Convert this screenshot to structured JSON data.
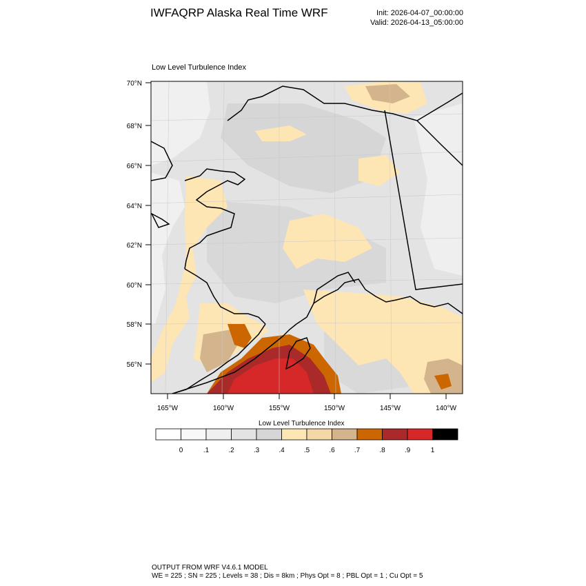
{
  "header": {
    "title": "IWFAQRP Alaska Real Time WRF",
    "init": "Init: 2026-04-07_00:00:00",
    "valid": "Valid: 2026-04-13_05:00:00"
  },
  "map": {
    "title": "Low Level Turbulence Index",
    "lat_labels": [
      "70°N",
      "68°N",
      "66°N",
      "64°N",
      "62°N",
      "60°N",
      "58°N",
      "56°N"
    ],
    "lon_labels": [
      "165°W",
      "160°W",
      "155°W",
      "150°W",
      "145°W",
      "140°W"
    ],
    "colors": {
      "background": "#e6e6e6",
      "land_light": "#f0f0f0",
      "mid_gray": "#d8d8d8",
      "pale_orange": "#fde5b4",
      "tan": "#d4b48c",
      "orange": "#cc6600",
      "dark_red": "#aa2a2a",
      "red": "#d62828",
      "coast": "#000000"
    }
  },
  "colorbar": {
    "title": "Low Level Turbulence Index",
    "colors": [
      "#ffffff",
      "#f8f8f8",
      "#f0f0f0",
      "#e3e3e3",
      "#d6d6d6",
      "#fde5b4",
      "#f3d7a6",
      "#d4b48c",
      "#cc6600",
      "#aa2a2a",
      "#d62828",
      "#000000"
    ],
    "labels": [
      "0",
      ".1",
      ".2",
      ".3",
      ".4",
      ".5",
      ".6",
      ".7",
      ".8",
      ".9",
      "1"
    ]
  },
  "footer": {
    "line1": "OUTPUT FROM WRF V4.6.1 MODEL",
    "line2": "WE = 225 ; SN = 225 ; Levels = 38 ; Dis = 8km ; Phys Opt = 8 ; PBL Opt = 1 ; Cu Opt = 5"
  }
}
